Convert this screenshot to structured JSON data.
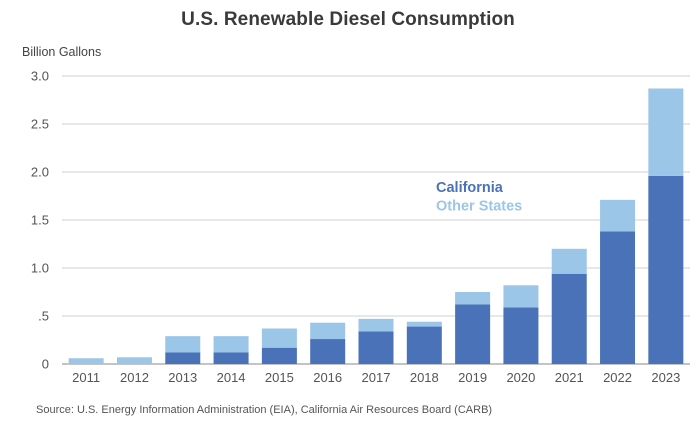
{
  "chart_data": {
    "type": "bar",
    "stacked": true,
    "title": "U.S. Renewable Diesel Consumption",
    "ylabel": "Billion Gallons",
    "xlabel": "",
    "categories": [
      "2011",
      "2012",
      "2013",
      "2014",
      "2015",
      "2016",
      "2017",
      "2018",
      "2019",
      "2020",
      "2021",
      "2022",
      "2023"
    ],
    "series": [
      {
        "name": "California",
        "color": "#4a72b8",
        "values": [
          0.0,
          0.0,
          0.12,
          0.12,
          0.17,
          0.26,
          0.34,
          0.39,
          0.62,
          0.59,
          0.94,
          1.38,
          1.96
        ]
      },
      {
        "name": "Other States",
        "color": "#9cc6e8",
        "values": [
          0.06,
          0.07,
          0.17,
          0.17,
          0.2,
          0.17,
          0.13,
          0.05,
          0.13,
          0.23,
          0.26,
          0.33,
          0.91
        ]
      }
    ],
    "ylim": [
      0,
      3.0
    ],
    "yticks": [
      0,
      0.5,
      1.0,
      1.5,
      2.0,
      2.5,
      3.0
    ],
    "ytick_labels": [
      "0",
      ".5",
      "1.0",
      "1.5",
      "2.0",
      "2.5",
      "3.0"
    ],
    "grid": true,
    "legend_position": "center-right"
  },
  "source": "Source: U.S. Energy Information Administration (EIA), California Air Resources Board (CARB)"
}
